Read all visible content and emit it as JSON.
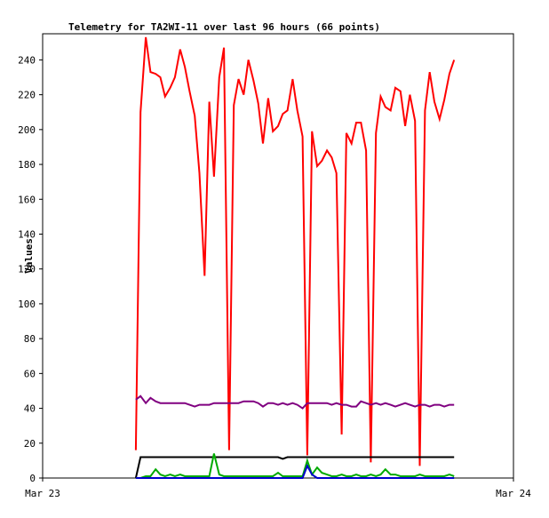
{
  "chart_data": {
    "type": "line",
    "title": "Telemetry for TA2WI-11 over last 96 hours (66 points)",
    "y_label": "Values",
    "xlim": [
      0,
      1
    ],
    "xticks": [
      {
        "value": 0,
        "label": "Mar 23"
      },
      {
        "value": 1,
        "label": "Mar 24"
      }
    ],
    "ylim": [
      0,
      255
    ],
    "yticks": [
      0,
      20,
      40,
      60,
      80,
      100,
      120,
      140,
      160,
      180,
      200,
      220,
      240
    ],
    "x": [
      0.198,
      0.208,
      0.219,
      0.229,
      0.24,
      0.25,
      0.26,
      0.271,
      0.281,
      0.292,
      0.302,
      0.312,
      0.323,
      0.333,
      0.344,
      0.354,
      0.364,
      0.375,
      0.385,
      0.396,
      0.406,
      0.416,
      0.427,
      0.437,
      0.448,
      0.458,
      0.468,
      0.479,
      0.489,
      0.5,
      0.51,
      0.52,
      0.531,
      0.541,
      0.552,
      0.562,
      0.572,
      0.583,
      0.593,
      0.604,
      0.614,
      0.624,
      0.635,
      0.645,
      0.656,
      0.666,
      0.676,
      0.687,
      0.697,
      0.708,
      0.718,
      0.728,
      0.739,
      0.749,
      0.76,
      0.77,
      0.78,
      0.791,
      0.801,
      0.812,
      0.822,
      0.832,
      0.843,
      0.853,
      0.864,
      0.874
    ],
    "series": [
      {
        "color": "#ff0000",
        "values": [
          16,
          210,
          253,
          233,
          232,
          230,
          219,
          224,
          230,
          246,
          236,
          222,
          208,
          175,
          116,
          216,
          173,
          230,
          247,
          16,
          214,
          229,
          220,
          240,
          228,
          215,
          192,
          218,
          199,
          202,
          209,
          211,
          229,
          211,
          196,
          13,
          199,
          179,
          182,
          188,
          184,
          175,
          25,
          198,
          192,
          204,
          204,
          188,
          9,
          198,
          219,
          213,
          211,
          224,
          222,
          202,
          220,
          205,
          7,
          211,
          233,
          216,
          206,
          217,
          232,
          240
        ]
      },
      {
        "color": "#800080",
        "values": [
          45,
          47,
          43,
          46,
          44,
          43,
          43,
          43,
          43,
          43,
          43,
          42,
          41,
          42,
          42,
          42,
          43,
          43,
          43,
          43,
          43,
          43,
          44,
          44,
          44,
          43,
          41,
          43,
          43,
          42,
          43,
          42,
          43,
          42,
          40,
          43,
          43,
          43,
          43,
          43,
          42,
          43,
          42,
          42,
          41,
          41,
          44,
          43,
          42,
          43,
          42,
          43,
          42,
          41,
          42,
          43,
          42,
          41,
          42,
          42,
          41,
          42,
          42,
          41,
          42,
          42
        ]
      },
      {
        "color": "#000000",
        "values": [
          0,
          12,
          12,
          12,
          12,
          12,
          12,
          12,
          12,
          12,
          12,
          12,
          12,
          12,
          12,
          12,
          12,
          12,
          12,
          12,
          12,
          12,
          12,
          12,
          12,
          12,
          12,
          12,
          12,
          12,
          11,
          12,
          12,
          12,
          12,
          12,
          12,
          12,
          12,
          12,
          12,
          12,
          12,
          12,
          12,
          12,
          12,
          12,
          12,
          12,
          12,
          12,
          12,
          12,
          12,
          12,
          12,
          12,
          12,
          12,
          12,
          12,
          12,
          12,
          12,
          12
        ]
      },
      {
        "color": "#00aa00",
        "values": [
          0,
          0,
          1,
          1,
          5,
          2,
          1,
          2,
          1,
          2,
          1,
          1,
          1,
          1,
          1,
          1,
          14,
          2,
          1,
          1,
          1,
          1,
          1,
          1,
          1,
          1,
          1,
          1,
          1,
          3,
          1,
          1,
          1,
          1,
          1,
          10,
          2,
          6,
          3,
          2,
          1,
          1,
          2,
          1,
          1,
          2,
          1,
          1,
          2,
          1,
          2,
          5,
          2,
          2,
          1,
          1,
          1,
          1,
          2,
          1,
          1,
          1,
          1,
          1,
          2,
          1
        ]
      },
      {
        "color": "#0000cc",
        "values": [
          0,
          0,
          0,
          0,
          0,
          0,
          0,
          0,
          0,
          0,
          0,
          0,
          0,
          0,
          0,
          0,
          0,
          0,
          0,
          0,
          0,
          0,
          0,
          0,
          0,
          0,
          0,
          0,
          0,
          0,
          0,
          0,
          0,
          0,
          0,
          7,
          2,
          0,
          0,
          0,
          0,
          0,
          0,
          0,
          0,
          0,
          0,
          0,
          0,
          0,
          0,
          0,
          0,
          0,
          0,
          0,
          0,
          0,
          0,
          0,
          0,
          0,
          0,
          0,
          0,
          0
        ]
      }
    ]
  }
}
